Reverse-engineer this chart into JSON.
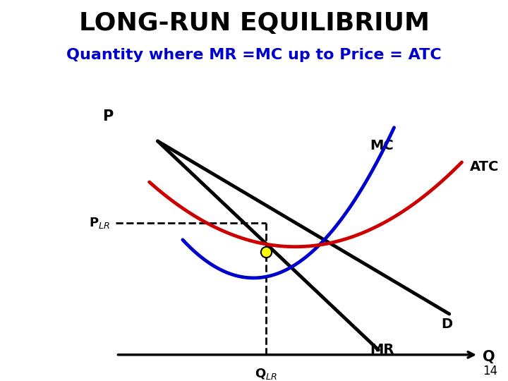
{
  "title": "LONG-RUN EQUILIBRIUM",
  "subtitle": "Quantity where MR =MC up to Price = ATC",
  "title_fontsize": 26,
  "subtitle_fontsize": 16,
  "title_color": "#000000",
  "subtitle_color": "#0000CC",
  "background_color": "#ffffff",
  "p_label": "P",
  "q_label": "Q",
  "mc_label": "MC",
  "atc_label": "ATC",
  "d_label": "D",
  "mr_label": "MR",
  "plr_label": "P_{LR}",
  "qlr_label": "Q_{LR}",
  "mc_color": "#0000CC",
  "atc_color": "#CC0000",
  "d_color": "#000000",
  "mr_color": "#000000",
  "equilibrium_color": "#FFFF00",
  "dashed_color": "#000000",
  "page_number": "14",
  "xlim": [
    0,
    10
  ],
  "ylim": [
    0,
    10
  ],
  "qlr": 4.8,
  "plr": 5.8,
  "eq_y": 4.6
}
